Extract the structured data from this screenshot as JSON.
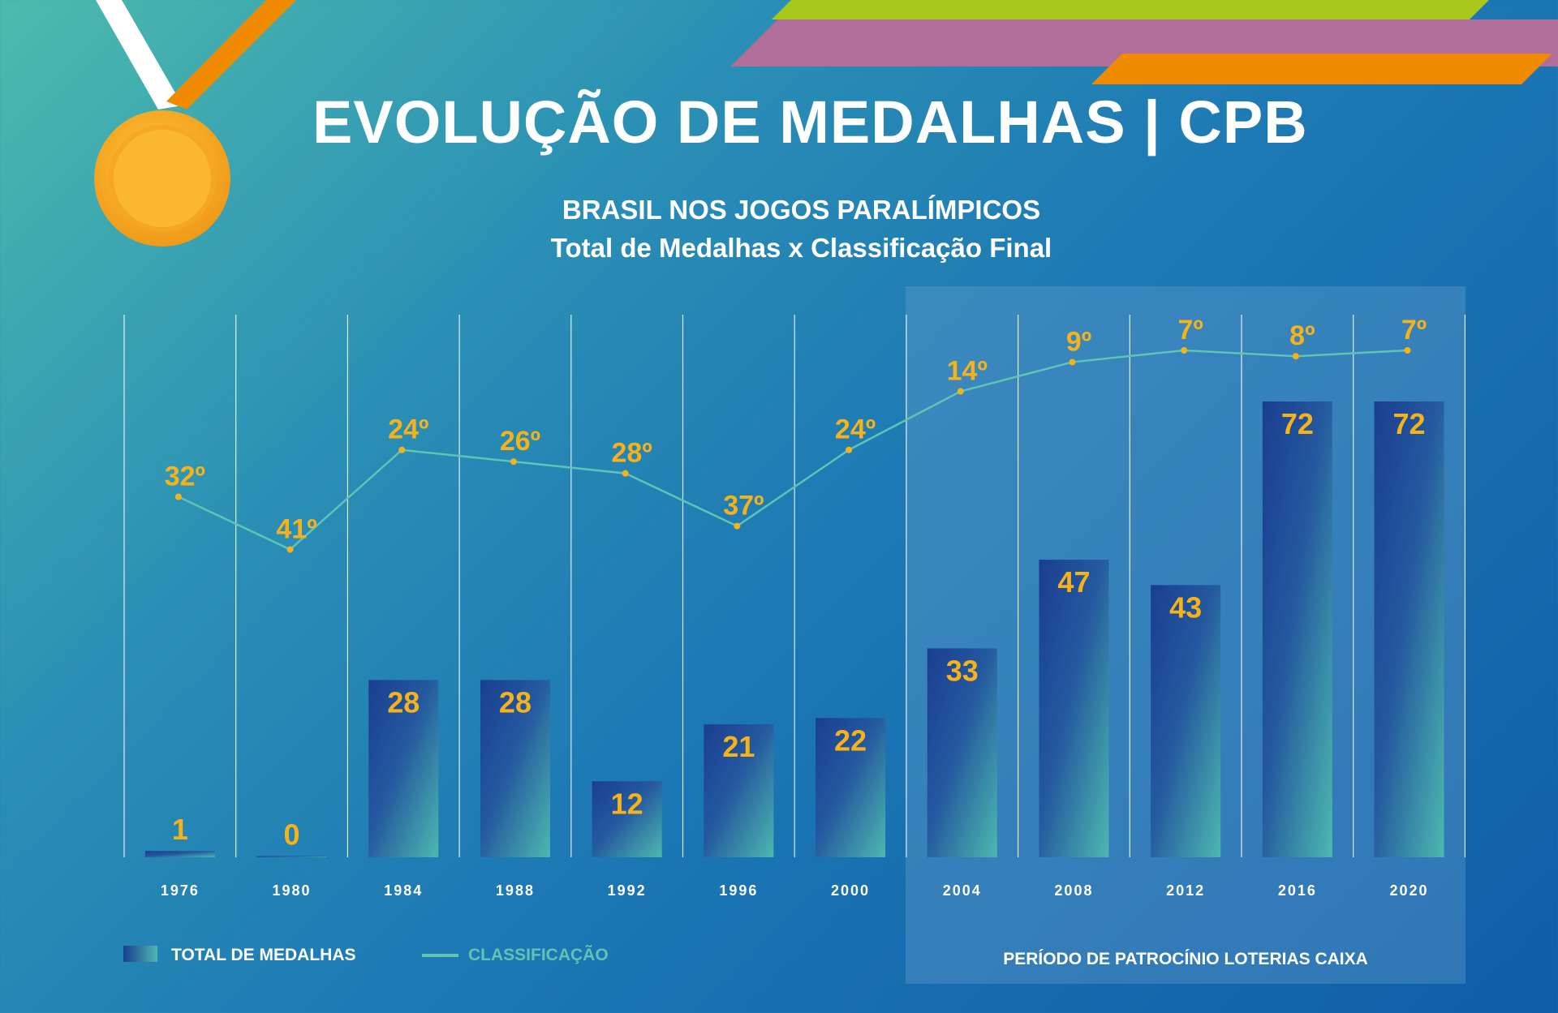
{
  "header": {
    "title": "EVOLUÇÃO DE MEDALHAS | CPB",
    "subtitle": "BRASIL NOS JOGOS PARALÍMPICOS",
    "subtitle2": "Total de Medalhas x Classificação Final"
  },
  "legend": {
    "bars_label": "TOTAL DE MEDALHAS",
    "line_label": "CLASSIFICAÇÃO"
  },
  "sponsor_label": "PERÍODO DE PATROCÍNIO LOTERIAS CAIXA",
  "colors": {
    "label_gold": "#f5b21b",
    "line_teal": "#5fc4b4",
    "bar_top": "#1a3e8f",
    "bar_bottom": "#4db8b0",
    "medal_gold": "#f5a623",
    "ribbon_orange": "#f08a00"
  },
  "chart_data": {
    "type": "bar",
    "categories": [
      "1976",
      "1980",
      "1984",
      "1988",
      "1992",
      "1996",
      "2000",
      "2004",
      "2008",
      "2012",
      "2016",
      "2020"
    ],
    "series": [
      {
        "name": "TOTAL DE MEDALHAS",
        "type": "bar",
        "values": [
          1,
          0,
          28,
          28,
          12,
          21,
          22,
          33,
          47,
          43,
          72,
          72
        ]
      },
      {
        "name": "CLASSIFICAÇÃO",
        "type": "line",
        "values": [
          32,
          41,
          24,
          26,
          28,
          37,
          24,
          14,
          9,
          7,
          8,
          7
        ],
        "labels": [
          "32º",
          "41º",
          "24º",
          "26º",
          "28º",
          "37º",
          "24º",
          "14º",
          "9º",
          "7º",
          "8º",
          "7º"
        ]
      }
    ],
    "ylim": [
      0,
      72
    ],
    "grid": true,
    "legend_position": "bottom-left",
    "highlight_range": [
      "2004",
      "2020"
    ]
  }
}
